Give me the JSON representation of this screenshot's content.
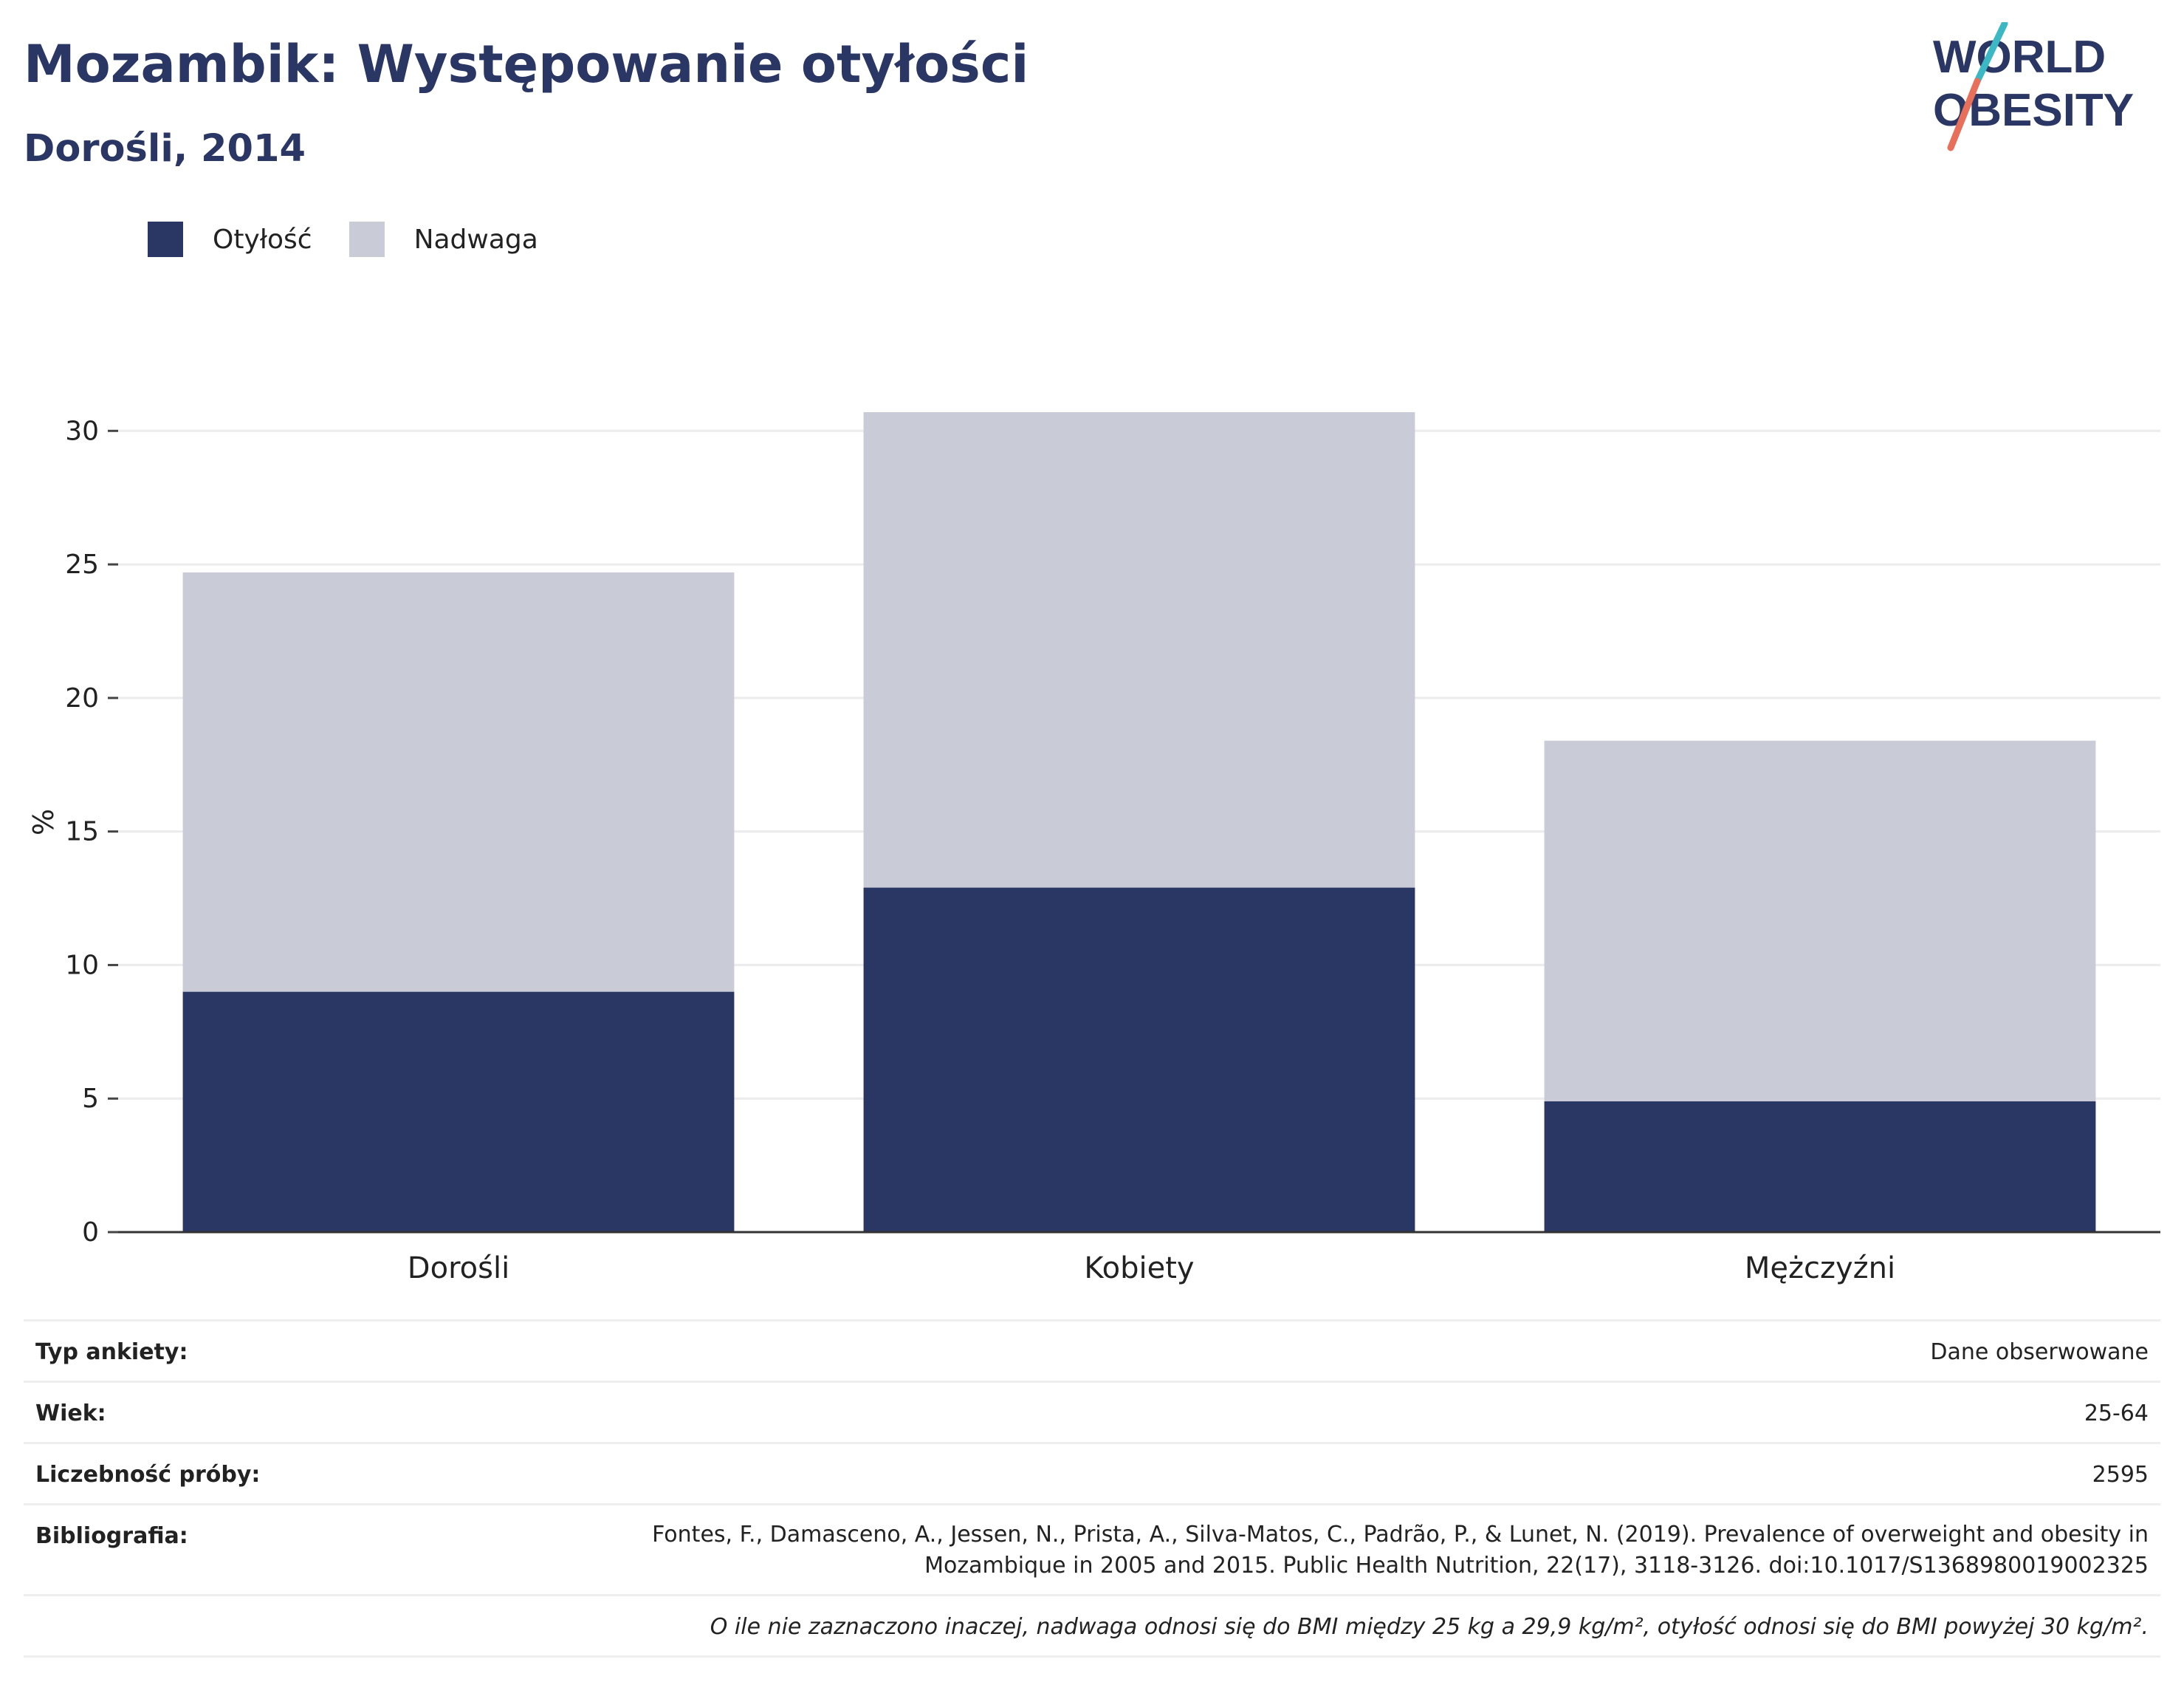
{
  "title": "Mozambik: Występowanie otyłości",
  "subtitle": "Dorośli, 2014",
  "logo": {
    "line1": "WORLD",
    "line2": "OBESITY"
  },
  "legend": [
    {
      "label": "Otyłość",
      "color": "#2a3663"
    },
    {
      "label": "Nadwaga",
      "color": "#c9cbd6"
    }
  ],
  "chart_data": {
    "type": "bar",
    "stacked": true,
    "categories": [
      "Dorośli",
      "Kobiety",
      "Mężczyźni"
    ],
    "series": [
      {
        "name": "Otyłość",
        "values": [
          9.0,
          12.9,
          4.9
        ],
        "color": "#2a3663"
      },
      {
        "name": "Nadwaga",
        "values": [
          15.7,
          17.8,
          13.5
        ],
        "color": "#c9cbd6"
      }
    ],
    "ylabel": "%",
    "ylim": [
      0,
      30.7
    ],
    "yticks": [
      0,
      5,
      10,
      15,
      20,
      25,
      30
    ],
    "grid": true
  },
  "info": {
    "survey_label": "Typ ankiety:",
    "survey_value": "Dane obserwowane",
    "age_label": "Wiek:",
    "age_value": "25-64",
    "sample_label": "Liczebność próby:",
    "sample_value": "2595",
    "biblio_label": "Bibliografia:",
    "biblio_line1": "Fontes, F., Damasceno, A., Jessen, N., Prista, A., Silva-Matos, C., Padrão, P., & Lunet, N. (2019). Prevalence of overweight and obesity in",
    "biblio_line2": "Mozambique in 2005 and 2015. Public Health Nutrition, 22(17), 3118-3126. doi:10.1017/S1368980019002325",
    "note": "O ile nie zaznaczono inaczej, nadwaga odnosi się do BMI między 25 kg a 29,9 kg/m², otyłość odnosi się do BMI powyżej 30 kg/m²."
  }
}
